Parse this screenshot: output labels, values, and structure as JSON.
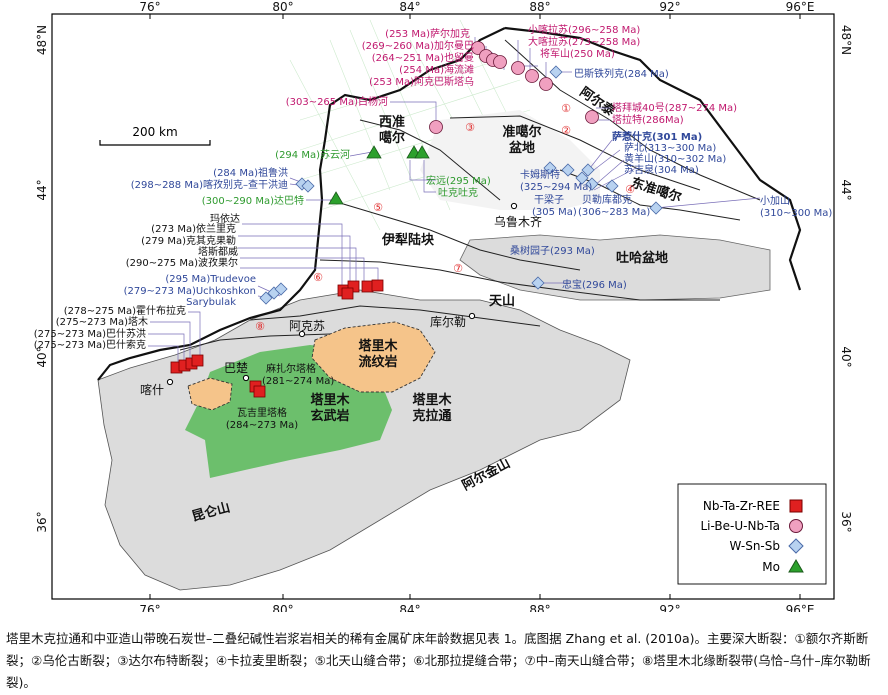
{
  "frame": {
    "lon_ticks_bottom": [
      "76°",
      "80°",
      "84°",
      "88°",
      "92°",
      "96°E"
    ],
    "lon_ticks_top": [
      "76°",
      "80°",
      "84°",
      "88°",
      "92°",
      "96°E"
    ],
    "lat_ticks_left": [
      "48°N",
      "44°",
      "40°",
      "36°"
    ],
    "lat_ticks_right": [
      "48°N",
      "44°",
      "40°",
      "36°"
    ]
  },
  "scale_bar": {
    "label": "200 km"
  },
  "regions": [
    {
      "id": "west-junggar",
      "lines": [
        "西准",
        "噶尔"
      ]
    },
    {
      "id": "junggar-basin",
      "lines": [
        "准噶尔",
        "盆地"
      ]
    },
    {
      "id": "altai",
      "lines": [
        "阿尔泰"
      ]
    },
    {
      "id": "east-junggar",
      "lines": [
        "东准噶尔"
      ]
    },
    {
      "id": "yili-block",
      "lines": [
        "伊犁陆块"
      ]
    },
    {
      "id": "turpan-basin",
      "lines": [
        "吐哈盆地"
      ]
    },
    {
      "id": "tianshan",
      "lines": [
        "天山"
      ]
    },
    {
      "id": "tarim-rhyolite",
      "lines": [
        "塔里木",
        "流纹岩"
      ]
    },
    {
      "id": "tarim-basalt",
      "lines": [
        "塔里木",
        "玄武岩"
      ]
    },
    {
      "id": "tarim-craton",
      "lines": [
        "塔里木",
        "克拉通"
      ]
    },
    {
      "id": "kunlun",
      "lines": [
        "昆仑山"
      ]
    },
    {
      "id": "altyn",
      "lines": [
        "阿尔金山"
      ]
    }
  ],
  "cities": [
    "乌鲁木齐",
    "库尔勒",
    "阿克苏",
    "喀什",
    "巴楚"
  ],
  "faults": [
    "①",
    "②",
    "③",
    "④",
    "⑤",
    "⑥",
    "⑦",
    "⑧"
  ],
  "deposits": [
    {
      "label": "(253 Ma)萨尔加克",
      "type": "li"
    },
    {
      "label": "(269~260 Ma)加尔曼巴",
      "type": "li"
    },
    {
      "label": "(264~251 Ma)也留曼",
      "type": "li"
    },
    {
      "label": "(254 Ma)海流滩",
      "type": "li"
    },
    {
      "label": "(253 Ma)阿克巴斯塔乌",
      "type": "li"
    },
    {
      "label": "小喀拉苏(296~258 Ma)",
      "type": "li"
    },
    {
      "label": "大喀拉苏(273~258 Ma)",
      "type": "li"
    },
    {
      "label": "将军山(250 Ma)",
      "type": "li"
    },
    {
      "label": "巴斯铁列克(284 Ma)",
      "type": "w"
    },
    {
      "label": "(303~265 Ma)白杨河",
      "type": "li"
    },
    {
      "label": "塔拜城40号(287~274 Ma)",
      "type": "li"
    },
    {
      "label": "塔拉特(286Ma)",
      "type": "li"
    },
    {
      "label": "萨惹什克(301 Ma)",
      "type": "w"
    },
    {
      "label": "萨北(313~300 Ma)",
      "type": "w"
    },
    {
      "label": "黄羊山(310~302 Ma)",
      "type": "w"
    },
    {
      "label": "苏吉泉(304 Ma)",
      "type": "w"
    },
    {
      "label": "卡姆斯特",
      "type": "w"
    },
    {
      "label": "(325~294 Ma)",
      "type": "w"
    },
    {
      "label": "干梁子",
      "type": "w"
    },
    {
      "label": "(305 Ma)",
      "type": "w"
    },
    {
      "label": "贝勒库都克",
      "type": "w"
    },
    {
      "label": "(306~283 Ma)",
      "type": "w"
    },
    {
      "label": "小加山",
      "type": "w"
    },
    {
      "label": "(310~300 Ma)",
      "type": "w"
    },
    {
      "label": "(284 Ma)祖鲁洪",
      "type": "w"
    },
    {
      "label": "(298~288 Ma)喀孜别克–查干洪迪",
      "type": "w"
    },
    {
      "label": "(300~290 Ma)达巴特",
      "type": "mo"
    },
    {
      "label": "(294 Ma)苏云河",
      "type": "mo"
    },
    {
      "label": "宏远(295 Ma)",
      "type": "mo"
    },
    {
      "label": "吐克吐克",
      "type": "mo"
    },
    {
      "label": "桑树园子(293 Ma)",
      "type": "w"
    },
    {
      "label": "忠宝(296 Ma)",
      "type": "w"
    },
    {
      "label": "玛依达",
      "type": "nb"
    },
    {
      "label": "(273 Ma)依兰里克",
      "type": "nb"
    },
    {
      "label": "(279 Ma)克其克果勒",
      "type": "nb"
    },
    {
      "label": "塔斯都威",
      "type": "nb"
    },
    {
      "label": "(290~275 Ma)波孜果尔",
      "type": "nb"
    },
    {
      "label": "(295 Ma)Trudevoe",
      "type": "w"
    },
    {
      "label": "(279~273 Ma)Uchkoshkon",
      "type": "w"
    },
    {
      "label": "Sarybulak",
      "type": "w"
    },
    {
      "label": "(278~275 Ma)霍什布拉克",
      "type": "nb"
    },
    {
      "label": "(275~273 Ma)塔木",
      "type": "nb"
    },
    {
      "label": "(275~273 Ma)巴什苏洪",
      "type": "nb"
    },
    {
      "label": "(275~273 Ma)巴什索克",
      "type": "nb"
    },
    {
      "label": "麻扎尔塔格",
      "type": "nb"
    },
    {
      "label": "(281~274 Ma)",
      "type": "nb"
    },
    {
      "label": "瓦吉里塔格",
      "type": "basalt"
    },
    {
      "label": "(284~273 Ma)",
      "type": "basalt"
    }
  ],
  "legend": [
    {
      "label": "Nb-Ta-Zr-REE",
      "symbol": "square",
      "color": "#e02020"
    },
    {
      "label": "Li-Be-U-Nb-Ta",
      "symbol": "circle",
      "color": "#f0a0c0"
    },
    {
      "label": "W-Sn-Sb",
      "symbol": "diamond",
      "color": "#b8d2f0"
    },
    {
      "label": "Mo",
      "symbol": "triangle",
      "color": "#2ca02c"
    }
  ],
  "colors": {
    "li_text": "#c0186e",
    "w_text": "#30489a",
    "mo_text": "#2e9a2e",
    "fault_num": "#e03030",
    "basin": "#dcdcdc",
    "rhyolite": "#f5c48a",
    "basalt": "#6cbf6c"
  },
  "caption": "塔里木克拉通和中亚造山带晚石炭世–二叠纪碱性岩浆岩相关的稀有金属矿床年龄数据见表 1。底图据 Zhang et al. (2010a)。主要深大断裂：①额尔齐斯断裂；②乌伦古断裂；③达尔布特断裂；④卡拉麦里断裂；⑤北天山缝合带；⑥北那拉提缝合带；⑦中–南天山缝合带；⑧塔里木北缘断裂带(乌恰–乌什–库尔勒断裂)。"
}
